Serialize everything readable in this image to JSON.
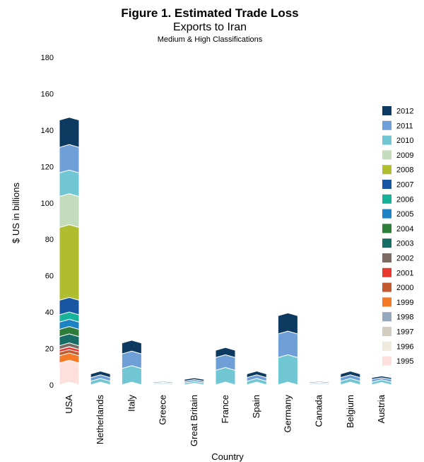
{
  "chart_data": {
    "type": "bar",
    "stacked": true,
    "title": "Figure 1. Estimated Trade Loss",
    "subtitle": "Exports to Iran",
    "subsubtitle": "Medium & High Classifications",
    "xlabel": "Country",
    "ylabel": "$ US in billions",
    "ylim": [
      0,
      180
    ],
    "yticks": [
      0,
      20,
      40,
      60,
      80,
      100,
      120,
      140,
      160,
      180
    ],
    "grid": false,
    "legend_position": "right",
    "categories": [
      "USA",
      "Netherlands",
      "Italy",
      "Greece",
      "Great Britain",
      "France",
      "Spain",
      "Germany",
      "Canada",
      "Belgium",
      "Austria"
    ],
    "series": [
      {
        "name": "1995",
        "color": "#fde0dc",
        "values": [
          12,
          0,
          0,
          0,
          0,
          0,
          0,
          0,
          0,
          0,
          0
        ]
      },
      {
        "name": "1996",
        "color": "#eeeadc",
        "values": [
          0,
          0,
          0,
          0,
          0,
          0,
          0,
          0,
          0,
          0,
          0
        ]
      },
      {
        "name": "1997",
        "color": "#d3cdbf",
        "values": [
          0,
          0,
          0,
          0,
          0,
          0,
          0,
          0,
          0,
          0,
          0
        ]
      },
      {
        "name": "1998",
        "color": "#96a8bd",
        "values": [
          0,
          0,
          0,
          0,
          0,
          0,
          0,
          0,
          0,
          0,
          0
        ]
      },
      {
        "name": "1999",
        "color": "#f47a28",
        "values": [
          4,
          0,
          0,
          0,
          0,
          0,
          0,
          0,
          0,
          0,
          0
        ]
      },
      {
        "name": "2000",
        "color": "#c2592f",
        "values": [
          2,
          0,
          0,
          0,
          0,
          0,
          0,
          0,
          0,
          0,
          0
        ]
      },
      {
        "name": "2001",
        "color": "#e8392f",
        "values": [
          1.5,
          0,
          0,
          0,
          0,
          0,
          0,
          0,
          0,
          0,
          0
        ]
      },
      {
        "name": "2002",
        "color": "#7c6b62",
        "values": [
          2,
          0,
          0,
          0,
          0,
          0,
          0,
          0,
          0,
          0,
          0
        ]
      },
      {
        "name": "2003",
        "color": "#176c66",
        "values": [
          5,
          0,
          0,
          0,
          0,
          0,
          0,
          0,
          0,
          0,
          0
        ]
      },
      {
        "name": "2004",
        "color": "#2e7d3b",
        "values": [
          4,
          0,
          0,
          0,
          0,
          0,
          0,
          0,
          0,
          0,
          0
        ]
      },
      {
        "name": "2005",
        "color": "#1c82c4",
        "values": [
          4,
          0,
          0,
          0,
          0,
          0,
          0,
          0,
          0,
          0,
          0
        ]
      },
      {
        "name": "2006",
        "color": "#16b39a",
        "values": [
          4,
          0,
          0,
          0,
          0,
          0,
          0,
          0,
          0,
          0,
          0
        ]
      },
      {
        "name": "2007",
        "color": "#1757a2",
        "values": [
          8,
          0,
          0,
          0,
          0,
          0,
          0,
          0,
          0,
          0,
          0
        ]
      },
      {
        "name": "2008",
        "color": "#afbd2f",
        "values": [
          40,
          0,
          0,
          0,
          0,
          0,
          0,
          0,
          0,
          0,
          0
        ]
      },
      {
        "name": "2009",
        "color": "#c2dcbc",
        "values": [
          17,
          0,
          0,
          0,
          0,
          0,
          0,
          0,
          0,
          0,
          0
        ]
      },
      {
        "name": "2010",
        "color": "#70c7d3",
        "values": [
          13,
          2,
          9,
          0.5,
          1,
          8,
          2,
          15,
          0.5,
          2,
          1.5
        ]
      },
      {
        "name": "2011",
        "color": "#6e9fd7",
        "values": [
          14,
          2,
          8,
          0.5,
          1,
          7,
          2,
          13,
          0.5,
          2,
          1.5
        ]
      },
      {
        "name": "2012",
        "color": "#0d3a60",
        "values": [
          15,
          2,
          6,
          0.5,
          1,
          4,
          2,
          10,
          0.5,
          2,
          1
        ]
      }
    ]
  }
}
